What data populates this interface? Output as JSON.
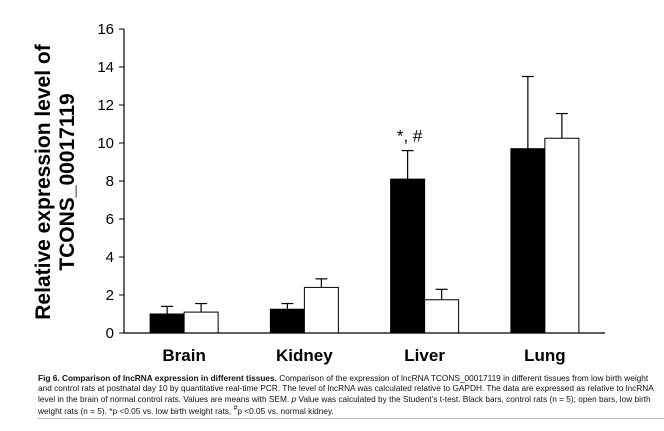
{
  "chart_data": {
    "type": "bar",
    "categories": [
      "Brain",
      "Kidney",
      "Liver",
      "Lung"
    ],
    "series": [
      {
        "name": "Black bars, control rats (n = 5)",
        "color": "#000000",
        "values": [
          1.0,
          1.25,
          8.1,
          9.7
        ],
        "error": [
          0.4,
          0.3,
          1.5,
          3.8
        ]
      },
      {
        "name": "open bars, low birth weight rats (n = 5)",
        "color": "#ffffff",
        "values": [
          1.1,
          2.4,
          1.75,
          10.25
        ],
        "error": [
          0.45,
          0.45,
          0.55,
          1.3
        ]
      }
    ],
    "ylabel_line1": "Relative expression level of",
    "ylabel_line2": "TCONS_00017119",
    "ylim": [
      0,
      16
    ],
    "yticks": [
      0,
      2,
      4,
      6,
      8,
      10,
      12,
      14,
      16
    ],
    "annotations": [
      {
        "text": "*, #",
        "category": "Liver",
        "series": 0
      }
    ]
  },
  "caption": {
    "title": "Fig 6. Comparison of lncRNA expression in different tissues.",
    "text1": " Comparison of the expression of lncRNA TCONS_00017119 in different tissues from low birth weight and control rats at postnatal day 10 by quantitative real-time PCR. The level of lncRNA was calculated relative to GAPDH. The data are expressed as relative to lncRNA level in the brain of normal control rats. Values are means with SEM. ",
    "p_italic": "p",
    "text2": " Value was calculated by the Student’s t-test. Black bars, control rats (n = 5); open bars, low birth weight rats (n = 5). *p <0.05 vs. low birth weight rats, ",
    "hash_sup": "#",
    "text3": "p <0.05 vs. normal kidney."
  }
}
